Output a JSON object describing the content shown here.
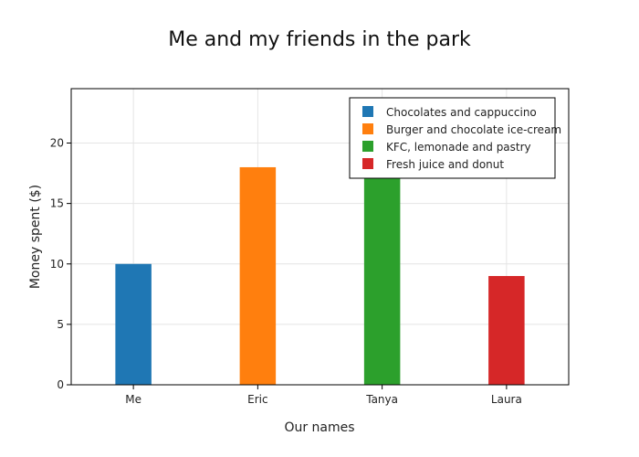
{
  "chart_data": {
    "type": "bar",
    "title": "Me and my friends in the park",
    "xlabel": "Our names",
    "ylabel": "Money spent ($)",
    "ylim": [
      0,
      24.5
    ],
    "yticks": [
      0,
      5,
      10,
      15,
      20
    ],
    "grid": true,
    "legend_position": "top-right",
    "categories": [
      "Me",
      "Eric",
      "Tanya",
      "Laura"
    ],
    "series": [
      {
        "name": "Chocolates and cappuccino",
        "color": "#1f77b4",
        "category": "Me",
        "value": 10
      },
      {
        "name": "Burger and chocolate ice-cream",
        "color": "#ff7f0e",
        "category": "Eric",
        "value": 18
      },
      {
        "name": "KFC, lemonade and pastry",
        "color": "#2ca02c",
        "category": "Tanya",
        "value": 18
      },
      {
        "name": "Fresh juice and donut",
        "color": "#d62728",
        "category": "Laura",
        "value": 9
      }
    ]
  }
}
